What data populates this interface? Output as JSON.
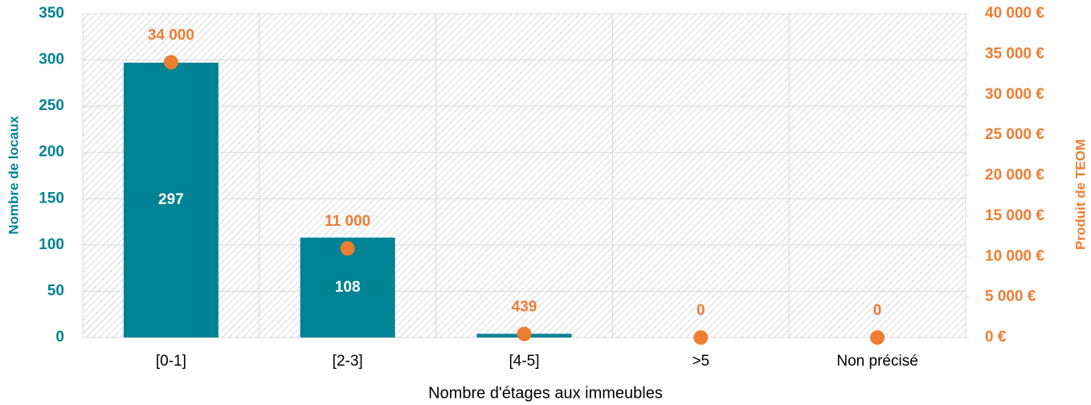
{
  "chart_data": {
    "type": "bar",
    "xlabel": "Nombre d'étages aux immeubles",
    "ylabel": "Nombre de locaux",
    "y2label": "Produit de TEOM",
    "categories": [
      "[0-1]",
      "[2-3]",
      "[4-5]",
      ">5",
      "Non précisé"
    ],
    "series": [
      {
        "type": "bar",
        "color": "#008394",
        "values": [
          297,
          108,
          4,
          0,
          0
        ]
      },
      {
        "type": "scatter",
        "axis": "y2",
        "color": "#ed7d31",
        "values": [
          34000,
          11000,
          439,
          0,
          0
        ],
        "value_labels": [
          "34 000",
          "11 000",
          "439",
          "0",
          "0"
        ]
      }
    ],
    "ylim": [
      0,
      350
    ],
    "yticks": [
      0,
      50,
      100,
      150,
      200,
      250,
      300,
      350
    ],
    "y2lim": [
      0,
      40000
    ],
    "y2ticks": [
      {
        "value": 0,
        "label": "0 €"
      },
      {
        "value": 5000,
        "label": "5 000 €"
      },
      {
        "value": 10000,
        "label": "10 000 €"
      },
      {
        "value": 15000,
        "label": "15 000 €"
      },
      {
        "value": 20000,
        "label": "20 000 €"
      },
      {
        "value": 25000,
        "label": "25 000 €"
      },
      {
        "value": 30000,
        "label": "30 000 €"
      },
      {
        "value": 35000,
        "label": "35 000 €"
      },
      {
        "value": 40000,
        "label": "40 000 €"
      }
    ],
    "grid": true
  }
}
